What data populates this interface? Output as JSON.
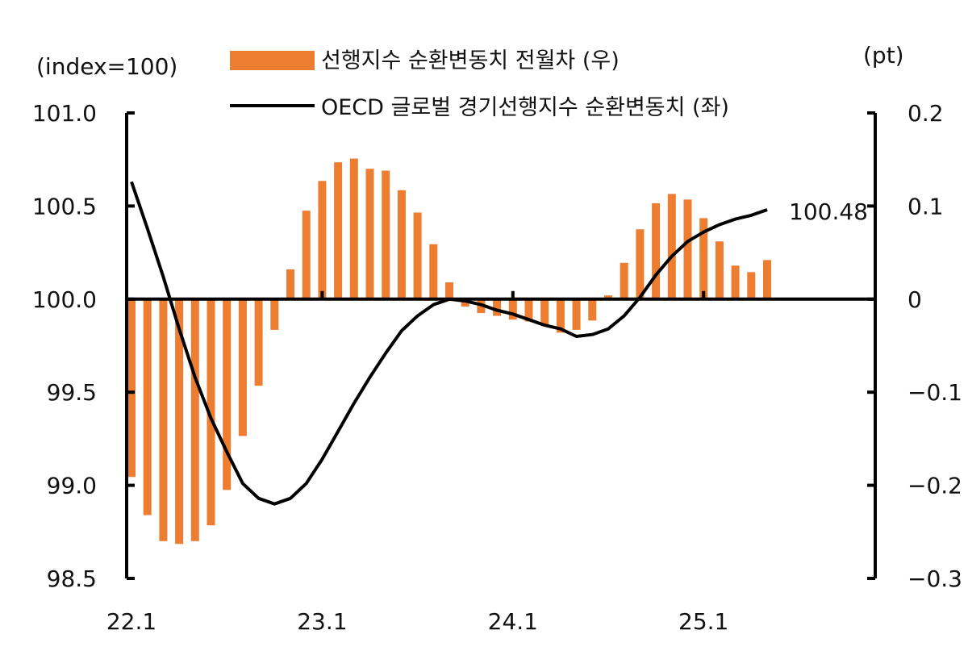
{
  "chart_data": {
    "type": "bar+line",
    "left_unit": "(index=100)",
    "right_unit": "(pt)",
    "left_ylim": [
      98.5,
      101.0
    ],
    "left_ticks": [
      "101.0",
      "100.5",
      "100.0",
      "99.5",
      "99.0",
      "98.5"
    ],
    "right_ylim": [
      -0.3,
      0.2
    ],
    "right_ticks": [
      "0.2",
      "0.1",
      "0",
      "-0.1",
      "-0.2",
      "-0.3"
    ],
    "x_tick_labels": [
      "22.1",
      "23.1",
      "24.1",
      "25.1"
    ],
    "months": [
      "22.1",
      "22.2",
      "22.3",
      "22.4",
      "22.5",
      "22.6",
      "22.7",
      "22.8",
      "22.9",
      "22.10",
      "22.11",
      "22.12",
      "23.1",
      "23.2",
      "23.3",
      "23.4",
      "23.5",
      "23.6",
      "23.7",
      "23.8",
      "23.9",
      "23.10",
      "23.11",
      "23.12",
      "24.1",
      "24.2",
      "24.3",
      "24.4",
      "24.5",
      "24.6",
      "24.7",
      "24.8",
      "24.9",
      "24.10",
      "24.11",
      "24.12",
      "25.1",
      "25.2",
      "25.3",
      "25.4",
      "25.5"
    ],
    "series": [
      {
        "name": "선행지수 순환변동치 전월차 (우)",
        "type": "bar",
        "axis": "right",
        "color": "#ED7D31",
        "values": [
          -0.191,
          -0.232,
          -0.26,
          -0.263,
          -0.26,
          -0.243,
          -0.205,
          -0.147,
          -0.093,
          -0.033,
          0.032,
          0.095,
          0.127,
          0.147,
          0.151,
          0.14,
          0.138,
          0.117,
          0.093,
          0.059,
          0.018,
          -0.008,
          -0.015,
          -0.018,
          -0.022,
          -0.024,
          -0.029,
          -0.036,
          -0.033,
          -0.023,
          0.004,
          0.039,
          0.075,
          0.103,
          0.113,
          0.107,
          0.087,
          0.062,
          0.036,
          0.029,
          0.042
        ]
      },
      {
        "name": "OECD 글로벌 경기선행지수 순환변동치 (좌)",
        "type": "line",
        "axis": "left",
        "color": "#000000",
        "values": [
          100.63,
          100.38,
          100.12,
          99.84,
          99.58,
          99.36,
          99.18,
          99.01,
          98.93,
          98.9,
          98.93,
          99.01,
          99.14,
          99.29,
          99.44,
          99.58,
          99.71,
          99.83,
          99.91,
          99.97,
          100.0,
          99.99,
          99.97,
          99.94,
          99.92,
          99.89,
          99.86,
          99.84,
          99.8,
          99.81,
          99.84,
          99.91,
          100.01,
          100.13,
          100.23,
          100.31,
          100.36,
          100.4,
          100.43,
          100.45,
          100.48
        ]
      }
    ],
    "annotation": "100.48",
    "legend_placement": "top-center",
    "grid": false
  }
}
